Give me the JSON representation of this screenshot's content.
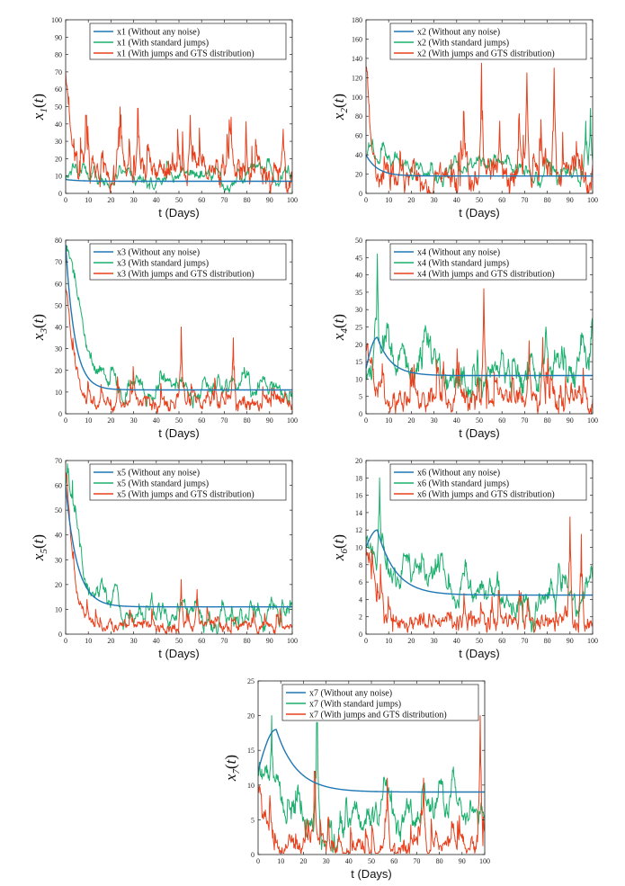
{
  "chart_data": [
    {
      "type": "line",
      "ylabel": "x1(t)",
      "ylabel_base": "x",
      "ylabel_sub": "1",
      "xlabel": "t (Days)",
      "xlim": [
        0,
        100
      ],
      "ylim": [
        0,
        100
      ],
      "xticks": [
        0,
        10,
        20,
        30,
        40,
        50,
        60,
        70,
        80,
        90,
        100
      ],
      "yticks": [
        0,
        10,
        20,
        30,
        40,
        50,
        60,
        70,
        80,
        90,
        100
      ],
      "legend_position": "top-center",
      "series": [
        {
          "name": "x1 (Without any noise)",
          "color": "#1f77b4",
          "kind": "deterministic",
          "start": 8,
          "level": 7,
          "tau": 6,
          "vol": 0,
          "spike_times": [],
          "spike_heights": []
        },
        {
          "name": "x1 (With standard jumps)",
          "color": "#1aaf6c",
          "kind": "green",
          "start": 8,
          "level": 9,
          "tau": 6,
          "vol": 3,
          "spike_times": [],
          "spike_heights": []
        },
        {
          "name": "x1 (With jumps and GTS distribution)",
          "color": "#e8401c",
          "kind": "red",
          "start": 70,
          "level": 13,
          "tau": 1.5,
          "vol": 7,
          "spike_times": [
            9,
            32,
            55,
            73,
            96
          ],
          "spike_heights": [
            45,
            49,
            45,
            44,
            37
          ]
        }
      ]
    },
    {
      "type": "line",
      "ylabel": "x2(t)",
      "ylabel_base": "x",
      "ylabel_sub": "2",
      "xlabel": "t (Days)",
      "xlim": [
        0,
        100
      ],
      "ylim": [
        0,
        180
      ],
      "xticks": [
        0,
        10,
        20,
        30,
        40,
        50,
        60,
        70,
        80,
        90,
        100
      ],
      "yticks": [
        0,
        20,
        40,
        60,
        80,
        100,
        120,
        140,
        160,
        180
      ],
      "legend_position": "top-center",
      "series": [
        {
          "name": "x2 (Without any noise)",
          "color": "#1f77b4",
          "kind": "deterministic",
          "start": 40,
          "level": 18,
          "tau": 5,
          "vol": 0,
          "spike_times": [],
          "spike_heights": []
        },
        {
          "name": "x2 (With standard jumps)",
          "color": "#1aaf6c",
          "kind": "green",
          "start": 40,
          "level": 22,
          "tau": 5,
          "vol": 6,
          "spike_times": [
            97,
            99
          ],
          "spike_heights": [
            75,
            88
          ]
        },
        {
          "name": "x2 (With jumps and GTS distribution)",
          "color": "#e8401c",
          "kind": "red",
          "start": 130,
          "level": 18,
          "tau": 1.5,
          "vol": 12,
          "spike_times": [
            51,
            59,
            71,
            83
          ],
          "spike_heights": [
            135,
            75,
            125,
            130
          ]
        }
      ]
    },
    {
      "type": "line",
      "ylabel": "x3(t)",
      "ylabel_base": "x",
      "ylabel_sub": "3",
      "xlabel": "t (Days)",
      "xlim": [
        0,
        100
      ],
      "ylim": [
        0,
        80
      ],
      "xticks": [
        0,
        10,
        20,
        30,
        40,
        50,
        60,
        70,
        80,
        90,
        100
      ],
      "yticks": [
        0,
        10,
        20,
        30,
        40,
        50,
        60,
        70,
        80
      ],
      "legend_position": "top-right",
      "series": [
        {
          "name": "x3 (Without any noise)",
          "color": "#1f77b4",
          "kind": "deterministic",
          "start": 78,
          "level": 11,
          "tau": 4,
          "vol": 0,
          "spike_times": [],
          "spike_heights": []
        },
        {
          "name": "x3 (With standard jumps)",
          "color": "#1aaf6c",
          "kind": "green",
          "start": 78,
          "level": 11,
          "tau": 4,
          "vol": 3,
          "spike_times": [],
          "spike_heights": []
        },
        {
          "name": "x3 (With jumps and GTS distribution)",
          "color": "#e8401c",
          "kind": "red",
          "start": 58,
          "level": 5,
          "tau": 3,
          "vol": 3,
          "spike_times": [
            51,
            74
          ],
          "spike_heights": [
            40,
            35
          ]
        }
      ]
    },
    {
      "type": "line",
      "ylabel": "x4(t)",
      "ylabel_base": "x",
      "ylabel_sub": "4",
      "xlabel": "t (Days)",
      "xlim": [
        0,
        100
      ],
      "ylim": [
        0,
        50
      ],
      "xticks": [
        0,
        10,
        20,
        30,
        40,
        50,
        60,
        70,
        80,
        90,
        100
      ],
      "yticks": [
        0,
        5,
        10,
        15,
        20,
        25,
        30,
        35,
        40,
        45,
        50
      ],
      "legend_position": "top-right",
      "series": [
        {
          "name": "x4 (Without any noise)",
          "color": "#1f77b4",
          "kind": "hump",
          "start": 13,
          "level": 11,
          "tau": 6,
          "vol": 0,
          "peak_t": 5,
          "peak_v": 22,
          "spike_times": [],
          "spike_heights": []
        },
        {
          "name": "x4 (With standard jumps)",
          "color": "#1aaf6c",
          "kind": "green",
          "start": 13,
          "level": 11,
          "tau": 6,
          "vol": 4,
          "spike_times": [
            5
          ],
          "spike_heights": [
            46
          ]
        },
        {
          "name": "x4 (With jumps and GTS distribution)",
          "color": "#e8401c",
          "kind": "red",
          "start": 18,
          "level": 4,
          "tau": 3,
          "vol": 3,
          "spike_times": [
            52,
            72,
            78
          ],
          "spike_heights": [
            36,
            21,
            22
          ]
        }
      ]
    },
    {
      "type": "line",
      "ylabel": "x5(t)",
      "ylabel_base": "x",
      "ylabel_sub": "5",
      "xlabel": "t (Days)",
      "xlim": [
        0,
        100
      ],
      "ylim": [
        0,
        70
      ],
      "xticks": [
        0,
        10,
        20,
        30,
        40,
        50,
        60,
        70,
        80,
        90,
        100
      ],
      "yticks": [
        0,
        10,
        20,
        30,
        40,
        50,
        60,
        70
      ],
      "legend_position": "top-right",
      "series": [
        {
          "name": "x5 (Without any noise)",
          "color": "#1f77b4",
          "kind": "deterministic",
          "start": 60,
          "level": 11,
          "tau": 5,
          "vol": 0,
          "spike_times": [],
          "spike_heights": []
        },
        {
          "name": "x5 (With standard jumps)",
          "color": "#1aaf6c",
          "kind": "green",
          "start": 60,
          "level": 8,
          "tau": 5,
          "vol": 3,
          "spike_times": [
            3
          ],
          "spike_heights": [
            62
          ]
        },
        {
          "name": "x5 (With jumps and GTS distribution)",
          "color": "#e8401c",
          "kind": "red",
          "start": 65,
          "level": 3,
          "tau": 3,
          "vol": 2,
          "spike_times": [
            51,
            58
          ],
          "spike_heights": [
            22,
            18
          ]
        }
      ]
    },
    {
      "type": "line",
      "ylabel": "x6(t)",
      "ylabel_base": "x",
      "ylabel_sub": "6",
      "xlabel": "t (Days)",
      "xlim": [
        0,
        100
      ],
      "ylim": [
        0,
        20
      ],
      "xticks": [
        0,
        10,
        20,
        30,
        40,
        50,
        60,
        70,
        80,
        90,
        100
      ],
      "yticks": [
        0,
        2,
        4,
        6,
        8,
        10,
        12,
        14,
        16,
        18,
        20
      ],
      "legend_position": "top-right",
      "series": [
        {
          "name": "x6 (Without any noise)",
          "color": "#1f77b4",
          "kind": "hump",
          "start": 10,
          "level": 4.5,
          "tau": 8,
          "vol": 0,
          "peak_t": 5,
          "peak_v": 12,
          "spike_times": [],
          "spike_heights": []
        },
        {
          "name": "x6 (With standard jumps)",
          "color": "#1aaf6c",
          "kind": "green",
          "start": 10,
          "level": 4.5,
          "tau": 8,
          "vol": 1.2,
          "spike_times": [
            6
          ],
          "spike_heights": [
            18
          ]
        },
        {
          "name": "x6 (With jumps and GTS distribution)",
          "color": "#e8401c",
          "kind": "red",
          "start": 10,
          "level": 1.5,
          "tau": 3,
          "vol": 1,
          "spike_times": [
            90,
            95
          ],
          "spike_heights": [
            13.5,
            11.5
          ]
        }
      ]
    },
    {
      "type": "line",
      "ylabel": "x7(t)",
      "ylabel_base": "x",
      "ylabel_sub": "7",
      "xlabel": "t (Days)",
      "xlim": [
        0,
        100
      ],
      "ylim": [
        0,
        25
      ],
      "xticks": [
        0,
        10,
        20,
        30,
        40,
        50,
        60,
        70,
        80,
        90,
        100
      ],
      "yticks": [
        0,
        5,
        10,
        15,
        20,
        25
      ],
      "legend_position": "top-right",
      "series": [
        {
          "name": "x7 (Without any noise)",
          "color": "#1f77b4",
          "kind": "hump",
          "start": 12,
          "level": 9,
          "tau": 9,
          "vol": 0,
          "peak_t": 8,
          "peak_v": 18,
          "spike_times": [],
          "spike_heights": []
        },
        {
          "name": "x7 (With standard jumps)",
          "color": "#1aaf6c",
          "kind": "green",
          "start": 12,
          "level": 5,
          "tau": 9,
          "vol": 1.8,
          "spike_times": [
            6,
            26
          ],
          "spike_heights": [
            20,
            19
          ]
        },
        {
          "name": "x7 (With jumps and GTS distribution)",
          "color": "#e8401c",
          "kind": "red",
          "start": 10,
          "level": 1.2,
          "tau": 3,
          "vol": 1.2,
          "spike_times": [
            25,
            57,
            73,
            98
          ],
          "spike_heights": [
            12,
            11,
            11,
            20
          ]
        }
      ]
    }
  ]
}
